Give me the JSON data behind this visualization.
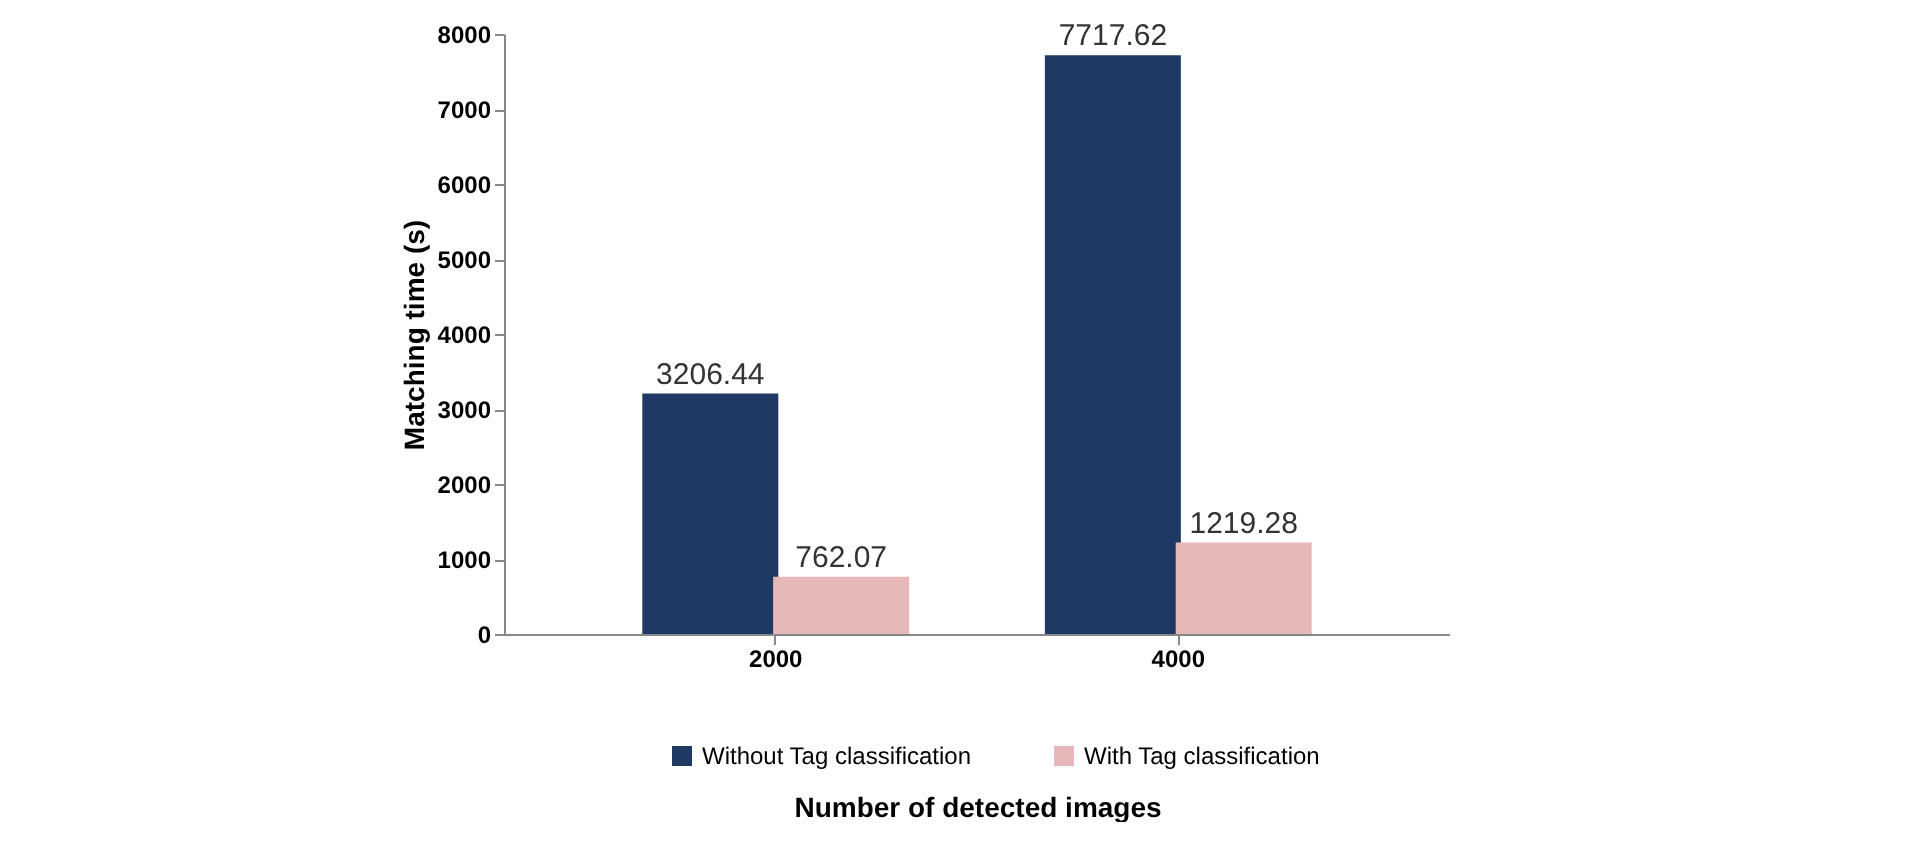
{
  "chart_data": {
    "type": "bar",
    "xlabel": "Number of detected images",
    "ylabel": "Matching time (s)",
    "categories": [
      "2000",
      "4000"
    ],
    "series": [
      {
        "name": "Without Tag classification",
        "color": "#1f3864",
        "values": [
          3206.44,
          7717.62
        ]
      },
      {
        "name": "With Tag classification",
        "color": "#e6b9b8",
        "values": [
          762.07,
          1219.28
        ]
      }
    ],
    "ylim": [
      0,
      8000
    ],
    "yticks": [
      0,
      1000,
      2000,
      3000,
      4000,
      5000,
      6000,
      7000,
      8000
    ],
    "data_labels": true,
    "grid": false,
    "legend": "bottom"
  }
}
